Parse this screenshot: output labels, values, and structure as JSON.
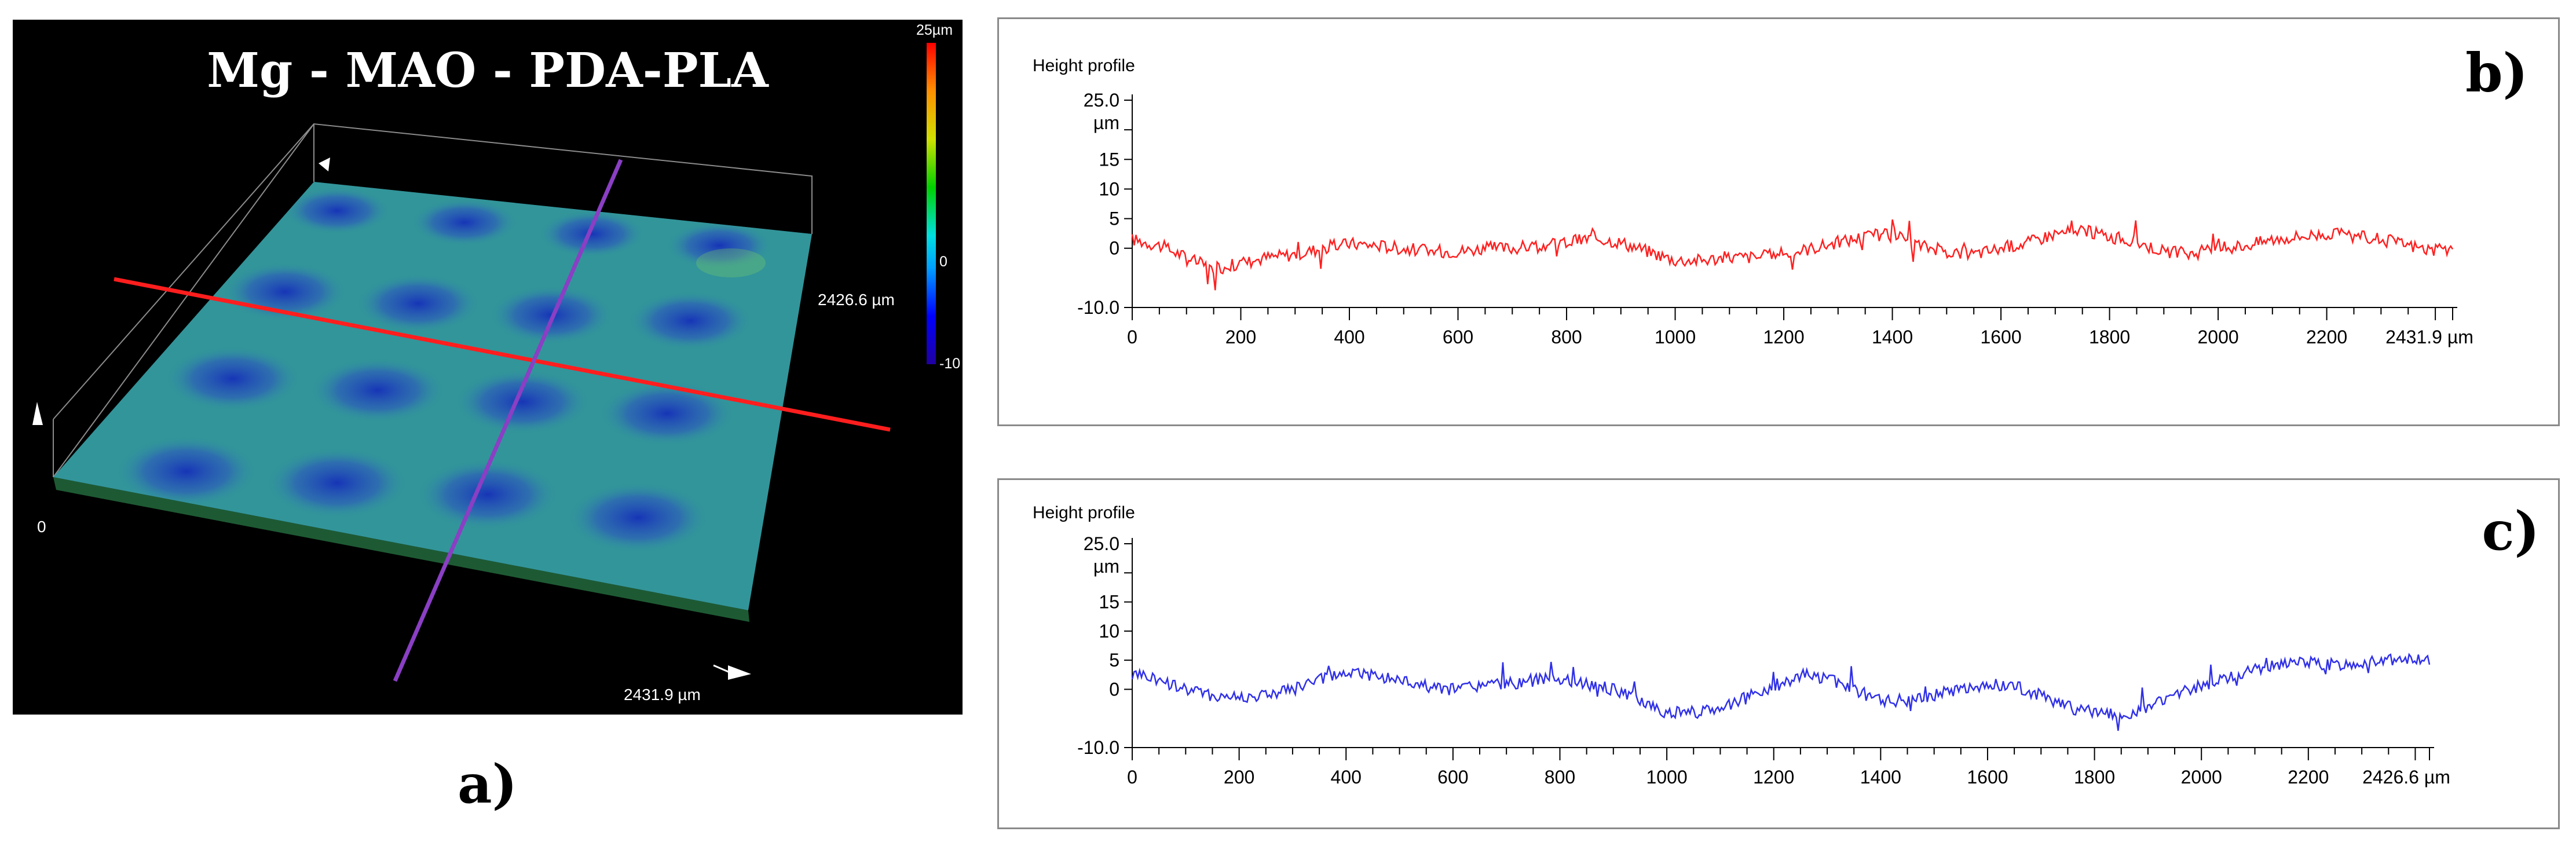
{
  "panel_a": {
    "title": "Mg - MAO - PDA-PLA",
    "colorbar": {
      "max_label": "25µm",
      "mid_label": "0",
      "min_label": "-10"
    },
    "width_label": "2426.6 µm",
    "length_label": "2431.9 µm",
    "origin_label": "0",
    "letter": "a)",
    "colors": {
      "background": "#000000",
      "surface": "#2f8fa3",
      "line_x": "#ff1e1e",
      "line_y": "#8a3fc4"
    }
  },
  "chart_data": [
    {
      "type": "line",
      "letter": "b)",
      "title": "Height profile",
      "ylabel": "µm",
      "ylim": [
        -10,
        25
      ],
      "yticks": [
        25,
        20,
        15,
        10,
        5,
        0,
        -10
      ],
      "ytick_labels": [
        "25.0",
        "",
        "15",
        "10",
        "5",
        "0",
        "-10.0"
      ],
      "xlim": [
        0,
        2431.9
      ],
      "xticks": [
        0,
        200,
        400,
        600,
        800,
        1000,
        1200,
        1400,
        1600,
        1800,
        2000,
        2200,
        2431.9
      ],
      "xtick_labels": [
        "0",
        "200",
        "400",
        "600",
        "800",
        "1000",
        "1200",
        "1400",
        "1600",
        "1800",
        "2000",
        "2200",
        "2431.9 µm"
      ],
      "color": "#ff2020",
      "series": [
        {
          "x": [
            0,
            50,
            100,
            150,
            200,
            250,
            300,
            350,
            400,
            450,
            500,
            550,
            600,
            650,
            700,
            750,
            800,
            850,
            900,
            950,
            1000,
            1050,
            1100,
            1150,
            1200,
            1250,
            1300,
            1350,
            1400,
            1450,
            1500,
            1550,
            1600,
            1650,
            1700,
            1750,
            1800,
            1850,
            1900,
            1950,
            2000,
            2050,
            2100,
            2150,
            2200,
            2250,
            2300,
            2350,
            2400,
            2431.9
          ],
          "y": [
            1.5,
            0.5,
            -1.5,
            -3.5,
            -2.5,
            -1.5,
            -1,
            0,
            0.8,
            0.5,
            0,
            -0.5,
            -0.5,
            0,
            0,
            0.5,
            1,
            1.8,
            1,
            -0.5,
            -2,
            -2,
            -1.5,
            -1.5,
            -1,
            0,
            1,
            2,
            2.5,
            0.5,
            -0.5,
            -1,
            0,
            1,
            2.5,
            3,
            2,
            1,
            -0.5,
            -1,
            0,
            0.5,
            1.5,
            2,
            2.5,
            2,
            1.5,
            0.5,
            -0.5,
            0
          ]
        }
      ]
    },
    {
      "type": "line",
      "letter": "c)",
      "title": "Height profile",
      "ylabel": "µm",
      "ylim": [
        -10,
        25
      ],
      "yticks": [
        25,
        20,
        15,
        10,
        5,
        0,
        -10
      ],
      "ytick_labels": [
        "25.0",
        "",
        "15",
        "10",
        "5",
        "0",
        "-10.0"
      ],
      "xlim": [
        0,
        2426.6
      ],
      "xticks": [
        0,
        200,
        400,
        600,
        800,
        1000,
        1200,
        1400,
        1600,
        1800,
        2000,
        2200,
        2426.6
      ],
      "xtick_labels": [
        "0",
        "200",
        "400",
        "600",
        "800",
        "1000",
        "1200",
        "1400",
        "1600",
        "1800",
        "2000",
        "2200",
        "2426.6 µm"
      ],
      "color": "#3030e8",
      "series": [
        {
          "x": [
            0,
            50,
            100,
            150,
            200,
            250,
            300,
            350,
            400,
            450,
            500,
            550,
            600,
            650,
            700,
            750,
            800,
            850,
            900,
            950,
            1000,
            1050,
            1100,
            1150,
            1200,
            1250,
            1300,
            1350,
            1400,
            1450,
            1500,
            1550,
            1600,
            1650,
            1700,
            1750,
            1800,
            1850,
            1900,
            1950,
            2000,
            2050,
            2100,
            2150,
            2200,
            2250,
            2300,
            2350,
            2400,
            2426.6
          ],
          "y": [
            3,
            1.5,
            0,
            -1,
            -1.5,
            -1,
            0,
            1.5,
            3,
            2.5,
            1.5,
            0.5,
            0,
            0.5,
            1,
            1.5,
            2,
            1,
            0,
            -2,
            -4,
            -4,
            -3,
            -1.5,
            0.5,
            2.5,
            2,
            0,
            -2,
            -2,
            -1,
            0,
            1,
            0.5,
            -1,
            -3,
            -4,
            -4.5,
            -3,
            -1,
            0.5,
            2,
            3.5,
            4.5,
            4.5,
            4,
            4.5,
            5,
            5,
            5
          ]
        }
      ]
    }
  ]
}
